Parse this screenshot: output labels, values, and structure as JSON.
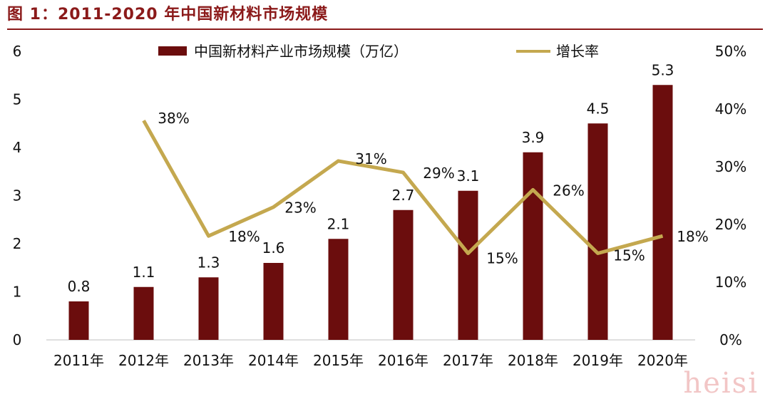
{
  "figure": {
    "title": "图 1：2011-2020 年中国新材料市场规模"
  },
  "watermark": "heisi",
  "chart_data": {
    "type": "bar+line",
    "categories": [
      "2011年",
      "2012年",
      "2013年",
      "2014年",
      "2015年",
      "2016年",
      "2017年",
      "2018年",
      "2019年",
      "2020年"
    ],
    "series": [
      {
        "name": "中国新材料产业市场规模（万亿）",
        "type": "bar",
        "axis": "left",
        "color": "#6b0d0d",
        "values": [
          0.8,
          1.1,
          1.3,
          1.6,
          2.1,
          2.7,
          3.1,
          3.9,
          4.5,
          5.3
        ],
        "labels": [
          "0.8",
          "1.1",
          "1.3",
          "1.6",
          "2.1",
          "2.7",
          "3.1",
          "3.9",
          "4.5",
          "5.3"
        ]
      },
      {
        "name": "增长率",
        "type": "line",
        "axis": "right",
        "color": "#c4a84f",
        "values": [
          null,
          38,
          18,
          23,
          31,
          29,
          15,
          26,
          15,
          18
        ],
        "labels": [
          "",
          "38%",
          "18%",
          "23%",
          "31%",
          "29%",
          "15%",
          "26%",
          "15%",
          "18%"
        ]
      }
    ],
    "y_left": {
      "ylim": [
        0,
        6
      ],
      "ticks": [
        "0",
        "1",
        "2",
        "3",
        "4",
        "5",
        "6"
      ]
    },
    "y_right": {
      "ylim": [
        0,
        50
      ],
      "ticks": [
        "0%",
        "10%",
        "20%",
        "30%",
        "40%",
        "50%"
      ]
    },
    "legend": "top-center",
    "grid": false
  }
}
